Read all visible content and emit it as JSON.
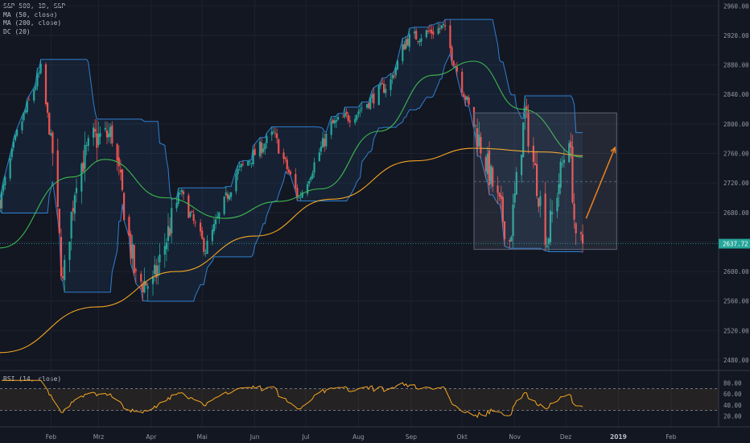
{
  "legend": {
    "symbol_line": "S&P 500, 1D, S&P",
    "ma50": "MA (50, close)",
    "ma200": "MA (200, close)",
    "dc": "DC (20)"
  },
  "rsi": {
    "title": "RSI (14, close)",
    "upper": 70,
    "lower": 30
  },
  "price_label": "2637.72",
  "colors": {
    "background": "#131722",
    "up": "#26a69a",
    "down": "#ef5350",
    "ma50": "#3fb950",
    "ma200": "#f5a623",
    "donchian": "#2f7fd0",
    "rsi": "#f5a623",
    "projection_arrow": "#e67e22"
  },
  "chart_data": [
    {
      "type": "candlestick",
      "title": "S&P 500, 1D, S&P",
      "ylim": [
        2468,
        2968
      ],
      "y_ticks": [
        "2480.00",
        "2520.00",
        "2560.00",
        "2600.00",
        "2640.00",
        "2680.00",
        "2720.00",
        "2760.00",
        "2800.00",
        "2840.00",
        "2880.00",
        "2920.00",
        "2960.00"
      ],
      "x_ticks": [
        "Feb",
        "Mrz",
        "Apr",
        "Mai",
        "Jun",
        "Jul",
        "Aug",
        "Sep",
        "Okt",
        "Nov",
        "Dez",
        "2019",
        "Feb"
      ],
      "last_price": 2637.72,
      "close_series": [
        {
          "date": "2018-01-02",
          "close": 2695
        },
        {
          "date": "2018-01-12",
          "close": 2786
        },
        {
          "date": "2018-01-26",
          "close": 2873
        },
        {
          "date": "2018-02-02",
          "close": 2762
        },
        {
          "date": "2018-02-08",
          "close": 2581
        },
        {
          "date": "2018-02-16",
          "close": 2732
        },
        {
          "date": "2018-02-26",
          "close": 2779
        },
        {
          "date": "2018-03-09",
          "close": 2786
        },
        {
          "date": "2018-03-23",
          "close": 2588
        },
        {
          "date": "2018-04-02",
          "close": 2582
        },
        {
          "date": "2018-04-18",
          "close": 2708
        },
        {
          "date": "2018-05-03",
          "close": 2630
        },
        {
          "date": "2018-05-21",
          "close": 2733
        },
        {
          "date": "2018-06-12",
          "close": 2786
        },
        {
          "date": "2018-06-27",
          "close": 2699
        },
        {
          "date": "2018-07-16",
          "close": 2798
        },
        {
          "date": "2018-07-31",
          "close": 2816
        },
        {
          "date": "2018-08-20",
          "close": 2858
        },
        {
          "date": "2018-08-29",
          "close": 2914
        },
        {
          "date": "2018-09-20",
          "close": 2931
        },
        {
          "date": "2018-10-10",
          "close": 2786
        },
        {
          "date": "2018-10-29",
          "close": 2641
        },
        {
          "date": "2018-11-07",
          "close": 2814
        },
        {
          "date": "2018-11-20",
          "close": 2642
        },
        {
          "date": "2018-12-03",
          "close": 2790
        },
        {
          "date": "2018-12-07",
          "close": 2633
        },
        {
          "date": "2018-12-11",
          "close": 2637.72
        }
      ],
      "ma50_approx": [
        {
          "date": "2018-01-02",
          "value": 2632
        },
        {
          "date": "2018-02-13",
          "value": 2728
        },
        {
          "date": "2018-03-05",
          "value": 2752
        },
        {
          "date": "2018-04-09",
          "value": 2700
        },
        {
          "date": "2018-05-14",
          "value": 2672
        },
        {
          "date": "2018-06-15",
          "value": 2695
        },
        {
          "date": "2018-07-10",
          "value": 2712
        },
        {
          "date": "2018-08-13",
          "value": 2790
        },
        {
          "date": "2018-09-14",
          "value": 2866
        },
        {
          "date": "2018-10-08",
          "value": 2885
        },
        {
          "date": "2018-11-05",
          "value": 2820
        },
        {
          "date": "2018-12-11",
          "value": 2755
        }
      ],
      "ma200_approx": [
        {
          "date": "2018-01-02",
          "value": 2490
        },
        {
          "date": "2018-02-28",
          "value": 2552
        },
        {
          "date": "2018-04-16",
          "value": 2600
        },
        {
          "date": "2018-06-01",
          "value": 2648
        },
        {
          "date": "2018-07-16",
          "value": 2698
        },
        {
          "date": "2018-09-03",
          "value": 2750
        },
        {
          "date": "2018-10-08",
          "value": 2767
        },
        {
          "date": "2018-11-19",
          "value": 2762
        },
        {
          "date": "2018-12-11",
          "value": 2757
        }
      ]
    },
    {
      "type": "line",
      "title": "RSI (14, close)",
      "ylim": [
        0,
        100
      ],
      "y_ticks": [
        "20.00",
        "40.00",
        "60.00",
        "80.00"
      ],
      "bands": [
        30,
        70
      ]
    }
  ]
}
